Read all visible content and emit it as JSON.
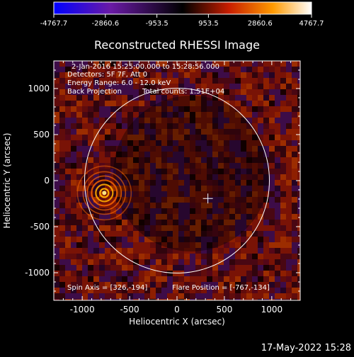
{
  "chart_data": {
    "type": "heatmap",
    "title": "Reconstructed RHESSI Image",
    "xlabel": "Heliocentric X (arcsec)",
    "ylabel": "Heliocentric Y (arcsec)",
    "xlim": [
      -1300,
      1300
    ],
    "ylim": [
      -1300,
      1300
    ],
    "x_ticks": [
      -1000,
      -500,
      0,
      500,
      1000
    ],
    "y_ticks": [
      -1000,
      -500,
      0,
      500,
      1000
    ],
    "x_tick_labels": [
      "-1000",
      "-500",
      "0",
      "500",
      "1000"
    ],
    "y_tick_labels": [
      "-1000",
      "-500",
      "0",
      "500",
      "1000"
    ],
    "colorbar": {
      "ticks": [
        "-4767.7",
        "-2860.6",
        "-953.5",
        "953.5",
        "2860.6",
        "4767.7"
      ],
      "range": [
        -4767.7,
        4767.7
      ],
      "colormap": [
        "#0000ff",
        "#7a1aa8",
        "#000000",
        "#cc1a00",
        "#ff8800",
        "#ffffff"
      ]
    },
    "solar_limb": {
      "center": [
        0,
        0
      ],
      "radius_arcsec": 975,
      "color": "#ffffff"
    },
    "source_peak": {
      "x": -767,
      "y": -134
    },
    "spin_axis_marker": {
      "x": 326,
      "y": -194
    },
    "grid": false
  },
  "annotations": {
    "time_range": "2-Jan-2016 15:25:00.000 to 15:28:56.000",
    "detectors": "Detectors: 5F 7F, Att 0",
    "energy": "Energy Range: 6.0 - 12.0 keV",
    "method": "Back Projection",
    "counts": "Total counts: 1.51E+04",
    "spin_axis": "Spin Axis = [326,-194]",
    "flare_position": "Flare Position = [-767,-134]"
  },
  "timestamp": "17-May-2022 15:28"
}
